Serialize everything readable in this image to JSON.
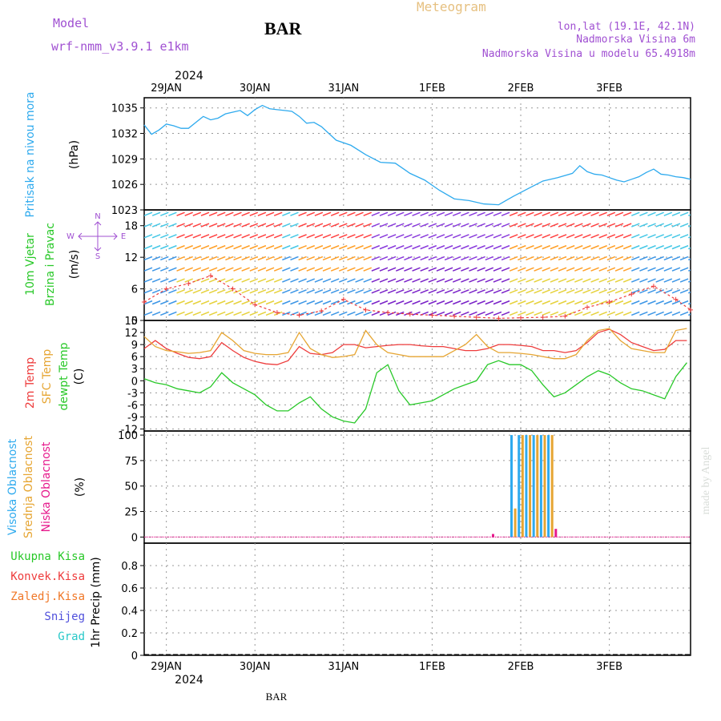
{
  "header": {
    "model_label": "Model",
    "model_name": "wrf-nmm_v3.9.1 e1km",
    "station": "BAR",
    "product": "Meteogram",
    "lonlat": "lon,lat (19.1E, 42.1N)",
    "elevation": "Nadmorska Visina 6m",
    "model_elevation": "Nadmorska Visina u modelu 65.4918m"
  },
  "footer": {
    "station": "BAR"
  },
  "watermark": "made by Angel",
  "colors": {
    "pressure": "#2eaaee",
    "t2m": "#ee3c3c",
    "tsfc": "#e6a532",
    "dewpoint": "#28c828",
    "high_cloud": "#2eaaee",
    "mid_cloud": "#e6a532",
    "low_cloud": "#e6198c",
    "purple_text": "#a050d2"
  },
  "chart_data": [
    {
      "type": "line",
      "title": "",
      "panel": "pressure",
      "ylabel": "(hPa)",
      "side_labels": [
        "Pritisak na nivou mora"
      ],
      "top_year": "2024",
      "x_tick_labels": [
        "29JAN",
        "30JAN",
        "31JAN",
        "1FEB",
        "2FEB",
        "3FEB"
      ],
      "ylim": [
        1023,
        1036.2
      ],
      "yticks": [
        "1023",
        "1026",
        "1029",
        "1032",
        "1035"
      ],
      "grid": true,
      "x_hours": [
        0,
        2,
        4,
        6,
        8,
        10,
        12,
        14,
        16,
        18,
        20,
        22,
        24,
        26,
        28,
        30,
        32,
        34,
        36,
        38,
        40,
        42,
        44,
        46,
        48,
        52,
        56,
        60,
        64,
        68,
        72,
        76,
        80,
        84,
        88,
        92,
        96,
        100,
        104,
        108,
        112,
        116,
        118,
        120,
        122,
        124,
        126,
        128,
        130,
        132,
        134,
        136,
        138,
        140,
        142,
        144,
        146,
        148
      ],
      "series": [
        {
          "values": [
            1033.0,
            1031.9,
            1032.4,
            1033.1,
            1032.9,
            1032.6,
            1032.6,
            1033.3,
            1034.0,
            1033.6,
            1033.8,
            1034.3,
            1034.5,
            1034.7,
            1034.1,
            1034.8,
            1035.3,
            1034.9,
            1034.8,
            1034.7,
            1034.6,
            1034.0,
            1033.2,
            1033.3,
            1032.8,
            1031.2,
            1030.6,
            1029.5,
            1028.6,
            1028.5,
            1027.3,
            1026.5,
            1025.3,
            1024.3,
            1024.1,
            1023.7,
            1023.6,
            1024.6,
            1025.5,
            1026.4,
            1026.8,
            1027.3,
            1028.2,
            1027.5,
            1027.2,
            1027.1,
            1026.8,
            1026.5,
            1026.3,
            1026.6,
            1026.9,
            1027.4,
            1027.8,
            1027.2,
            1027.1,
            1026.9,
            1026.8,
            1026.6
          ]
        }
      ]
    },
    {
      "type": "scatter",
      "title": "",
      "panel": "wind",
      "ylabel": "(m/s)",
      "side_labels": [
        "10m Vjetar",
        "Brzina i Pravac"
      ],
      "compass_labels": {
        "n": "N",
        "s": "S",
        "w": "W",
        "e": "E"
      },
      "ylim": [
        0,
        21
      ],
      "yticks": [
        "0",
        "6",
        "12",
        "18"
      ],
      "grid": true,
      "x_hours": [
        0,
        6,
        12,
        18,
        24,
        30,
        36,
        42,
        48,
        54,
        60,
        66,
        72,
        78,
        84,
        90,
        96,
        102,
        108,
        114,
        120,
        126,
        132,
        138,
        144,
        148
      ],
      "series": [
        {
          "name": "",
          "values": [
            3.5,
            6.0,
            7.0,
            8.5,
            6.0,
            3.0,
            1.5,
            1.0,
            1.8,
            4.0,
            2.0,
            1.5,
            1.2,
            1.0,
            0.8,
            0.6,
            0.4,
            0.5,
            0.6,
            0.8,
            2.5,
            3.5,
            5.0,
            6.5,
            4.0,
            2.0
          ]
        }
      ]
    },
    {
      "type": "line",
      "title": "",
      "panel": "temperature",
      "ylabel": "(C)",
      "side_labels": [
        "2m Temp",
        "SFC Temp",
        "dewpt Temp"
      ],
      "ylim": [
        -12.5,
        15
      ],
      "yticks": [
        "-12",
        "-9",
        "-6",
        "-3",
        "0",
        "3",
        "6",
        "9",
        "12",
        "15"
      ],
      "grid": true,
      "x_hours": [
        0,
        3,
        6,
        9,
        12,
        15,
        18,
        21,
        24,
        27,
        30,
        33,
        36,
        39,
        42,
        45,
        48,
        51,
        54,
        57,
        60,
        63,
        66,
        69,
        72,
        75,
        78,
        81,
        84,
        87,
        90,
        93,
        96,
        99,
        102,
        105,
        108,
        111,
        114,
        117,
        120,
        123,
        126,
        129,
        132,
        135,
        138,
        141,
        144,
        147
      ],
      "series": [
        {
          "name": "2m Temp",
          "values": [
            8.0,
            10.0,
            8.0,
            6.8,
            5.8,
            5.5,
            6.0,
            9.5,
            7.5,
            5.8,
            4.8,
            4.2,
            4.0,
            5.0,
            8.5,
            6.8,
            6.5,
            7.0,
            9.0,
            9.0,
            8.2,
            8.5,
            8.8,
            9.0,
            9.0,
            8.7,
            8.5,
            8.5,
            8.0,
            7.5,
            7.5,
            8.0,
            9.0,
            9.0,
            8.8,
            8.5,
            7.5,
            7.5,
            7.0,
            7.5,
            9.5,
            12.0,
            12.8,
            11.5,
            9.5,
            8.5,
            7.5,
            7.8,
            10.0,
            10.0
          ]
        },
        {
          "name": "SFC Temp",
          "values": [
            11.0,
            8.5,
            7.5,
            7.2,
            6.8,
            7.0,
            7.5,
            12.0,
            10.0,
            7.5,
            6.8,
            6.5,
            6.5,
            7.0,
            12.0,
            8.0,
            6.5,
            5.8,
            6.0,
            6.5,
            12.5,
            9.0,
            7.0,
            6.5,
            6.0,
            6.0,
            6.0,
            6.0,
            7.5,
            9.0,
            11.5,
            8.5,
            7.0,
            7.0,
            6.8,
            6.5,
            6.0,
            5.5,
            5.5,
            6.5,
            10.0,
            12.5,
            13.0,
            10.0,
            8.0,
            7.5,
            7.0,
            7.0,
            12.5,
            13.0
          ]
        },
        {
          "name": "dewpt Temp",
          "values": [
            0.5,
            -0.5,
            -1.0,
            -2.0,
            -2.5,
            -3.0,
            -1.5,
            2.0,
            -0.5,
            -2.0,
            -3.5,
            -6.0,
            -7.5,
            -7.5,
            -5.5,
            -4.0,
            -7.0,
            -9.0,
            -10.0,
            -10.5,
            -7.0,
            2.0,
            4.0,
            -2.5,
            -6.0,
            -5.5,
            -5.0,
            -3.5,
            -2.0,
            -1.0,
            0.0,
            4.0,
            5.0,
            4.0,
            4.0,
            2.5,
            -1.0,
            -4.0,
            -3.0,
            -1.0,
            1.0,
            2.5,
            1.5,
            -0.5,
            -2.0,
            -2.5,
            -3.5,
            -4.5,
            1.0,
            4.5
          ]
        }
      ]
    },
    {
      "type": "bar",
      "title": "",
      "panel": "cloud",
      "ylabel": "(%)",
      "side_labels": [
        "Visoka Oblacnost",
        "Srednja Oblacnost",
        "Niska Oblacnost"
      ],
      "ylim": [
        -6,
        104
      ],
      "yticks": [
        "0",
        "25",
        "50",
        "75",
        "100"
      ],
      "grid": true,
      "bars": [
        {
          "hour": 99.5,
          "value": 100,
          "series": "Visoka Oblacnost"
        },
        {
          "hour": 100.5,
          "value": 28,
          "series": "Srednja Oblacnost"
        },
        {
          "hour": 101.5,
          "value": 100,
          "series": "Visoka Oblacnost"
        },
        {
          "hour": 102.5,
          "value": 100,
          "series": "Srednja Oblacnost"
        },
        {
          "hour": 103.5,
          "value": 100,
          "series": "Visoka Oblacnost"
        },
        {
          "hour": 104.5,
          "value": 100,
          "series": "Srednja Oblacnost"
        },
        {
          "hour": 105.5,
          "value": 100,
          "series": "Visoka Oblacnost"
        },
        {
          "hour": 106.5,
          "value": 100,
          "series": "Srednja Oblacnost"
        },
        {
          "hour": 107.5,
          "value": 100,
          "series": "Visoka Oblacnost"
        },
        {
          "hour": 108.5,
          "value": 100,
          "series": "Srednja Oblacnost"
        },
        {
          "hour": 109.5,
          "value": 100,
          "series": "Visoka Oblacnost"
        },
        {
          "hour": 110.5,
          "value": 100,
          "series": "Srednja Oblacnost"
        },
        {
          "hour": 111.5,
          "value": 8,
          "series": "Niska Oblacnost"
        },
        {
          "hour": 94.5,
          "value": 3,
          "series": "Niska Oblacnost"
        }
      ]
    },
    {
      "type": "bar",
      "title": "",
      "panel": "precip",
      "ylabel": "1hr Precip (mm)",
      "side_labels": [
        "Ukupna Kisa",
        "Konvek.Kisa",
        "Zaledj.Kisa",
        "Snijeg",
        "Grad"
      ],
      "ylim": [
        0,
        1.0
      ],
      "yticks": [
        "0",
        "0.2",
        "0.4",
        "0.6",
        "0.8"
      ],
      "grid": true,
      "bottom_year": "2024",
      "x_tick_labels": [
        "29JAN",
        "30JAN",
        "31JAN",
        "1FEB",
        "2FEB",
        "3FEB"
      ],
      "values": []
    }
  ]
}
